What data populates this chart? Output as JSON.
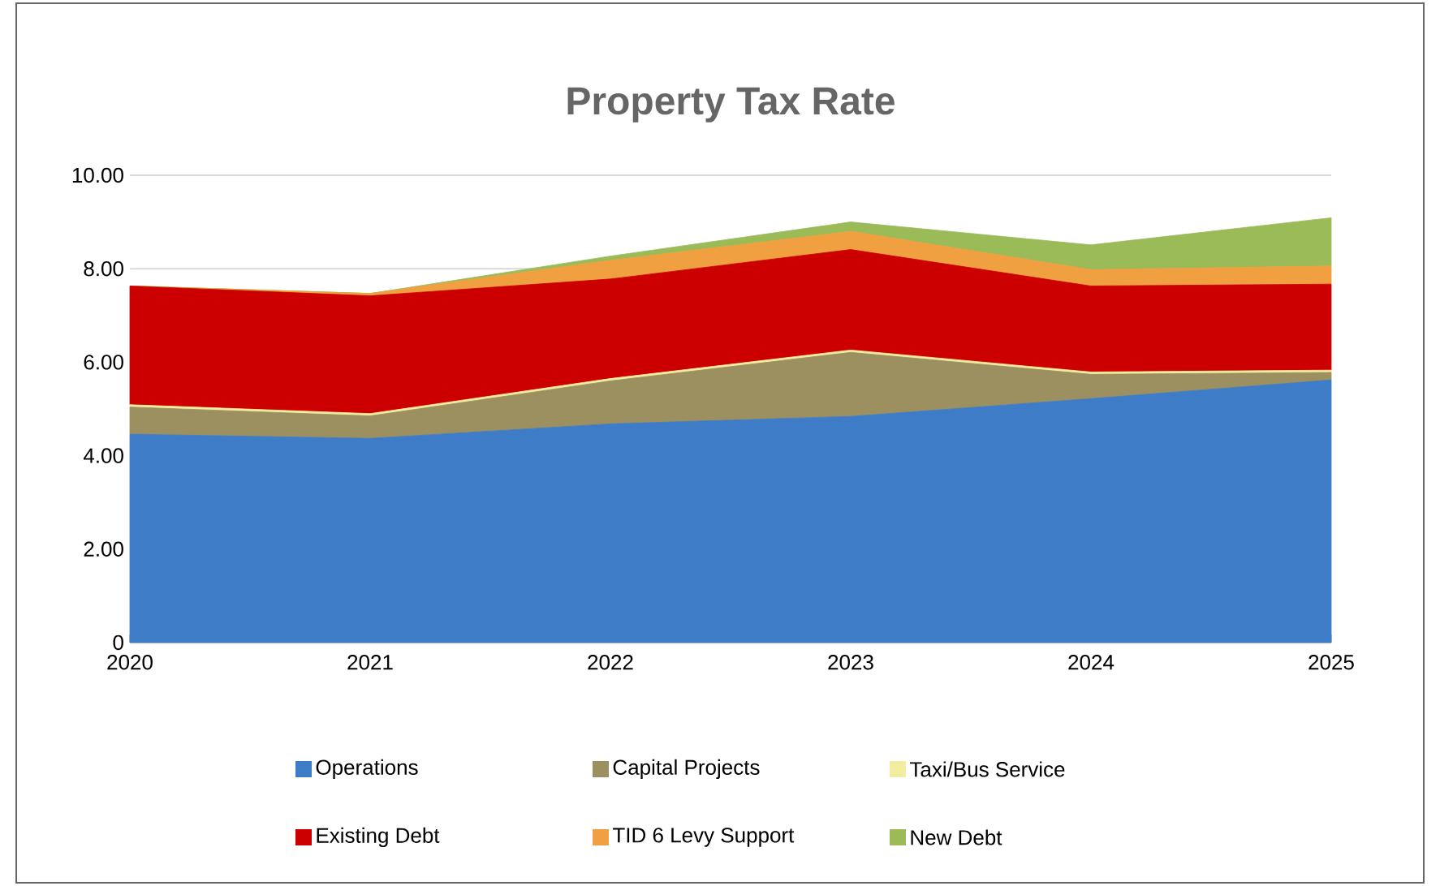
{
  "chart_data": {
    "type": "area",
    "stacked": true,
    "title": "Property Tax Rate",
    "x": [
      2020,
      2021,
      2022,
      2023,
      2024,
      2025
    ],
    "xlim": [
      2020,
      2025
    ],
    "xticks": [
      2020,
      2021,
      2022,
      2023,
      2024,
      2025
    ],
    "ylim": [
      0,
      10
    ],
    "yticks": [
      {
        "value": 0,
        "label": "0"
      },
      {
        "value": 2,
        "label": "2.00"
      },
      {
        "value": 4,
        "label": "4.00"
      },
      {
        "value": 6,
        "label": "6.00"
      },
      {
        "value": 8,
        "label": "8.00"
      },
      {
        "value": 10,
        "label": "10.00"
      }
    ],
    "grid": "y",
    "legend": "bottom",
    "series": [
      {
        "name": "Operations",
        "color": "#3f7cc8",
        "values": [
          4.46,
          4.37,
          4.68,
          4.84,
          5.22,
          5.62
        ]
      },
      {
        "name": "Capital Projects",
        "color": "#9c9060",
        "values": [
          0.58,
          0.48,
          0.92,
          1.37,
          0.52,
          0.16
        ]
      },
      {
        "name": "Taxi/Bus Service",
        "color": "#f2eda0",
        "values": [
          0.05,
          0.05,
          0.05,
          0.05,
          0.05,
          0.05
        ]
      },
      {
        "name": "Existing Debt",
        "color": "#cc0000",
        "values": [
          2.54,
          2.52,
          2.13,
          2.15,
          1.84,
          1.84
        ]
      },
      {
        "name": "TID 6 Levy Support",
        "color": "#f0a040",
        "values": [
          0,
          0.05,
          0.4,
          0.39,
          0.35,
          0.39
        ]
      },
      {
        "name": "New Debt",
        "color": "#9bbb59",
        "values": [
          0,
          0,
          0.09,
          0.2,
          0.53,
          1.03
        ]
      }
    ]
  }
}
